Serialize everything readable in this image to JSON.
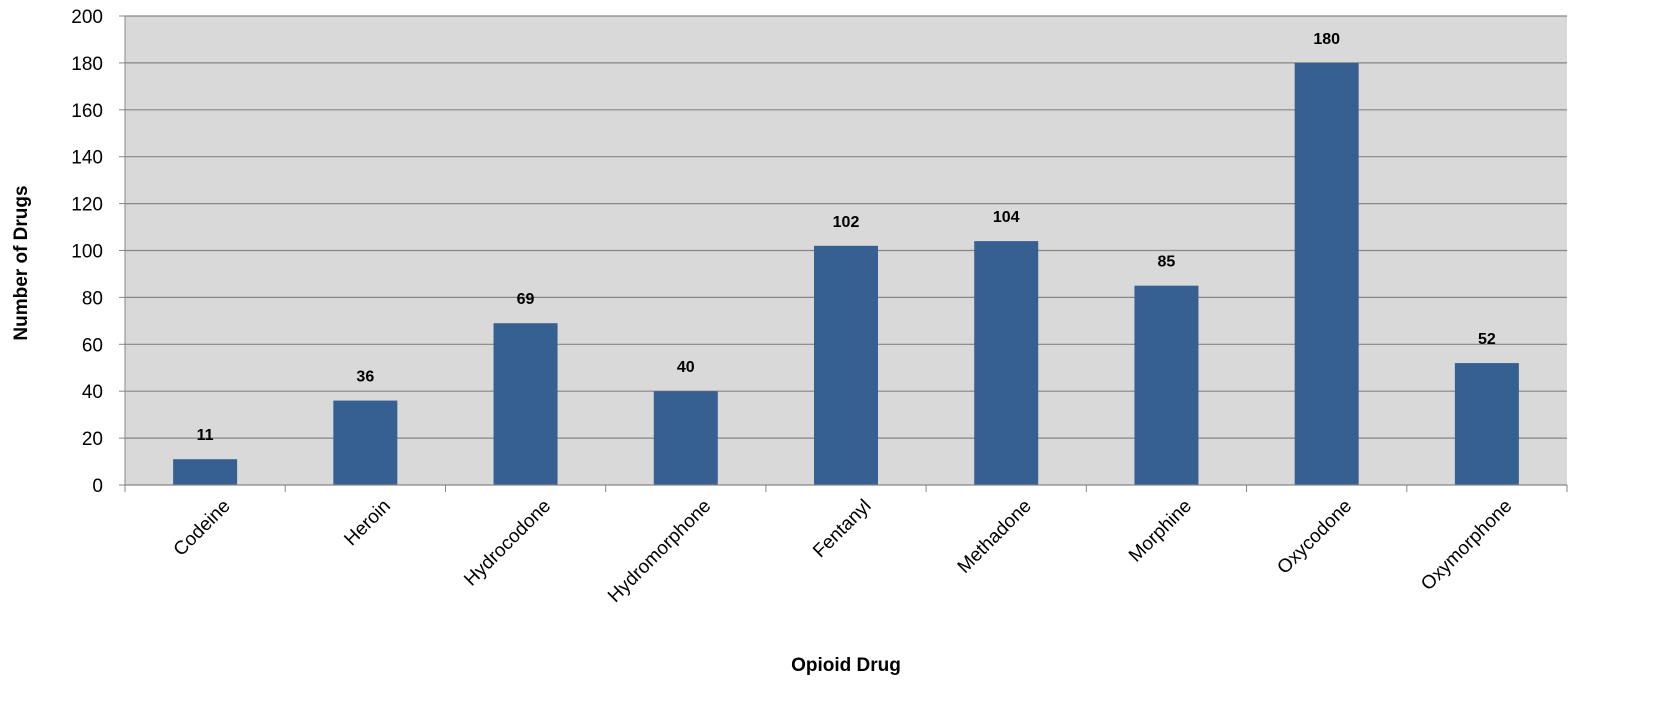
{
  "chart_data": {
    "type": "bar",
    "categories": [
      "Codeine",
      "Heroin",
      "Hydrocodone",
      "Hydromorphone",
      "Fentanyl",
      "Methadone",
      "Morphine",
      "Oxycodone",
      "Oxymorphone"
    ],
    "values": [
      11,
      36,
      69,
      40,
      102,
      104,
      85,
      180,
      52
    ],
    "xlabel": "Opioid Drug",
    "ylabel": "Number of Drugs",
    "ylim": [
      0,
      200
    ],
    "yticks": [
      0,
      20,
      40,
      60,
      80,
      100,
      120,
      140,
      160,
      180,
      200
    ],
    "grid": true,
    "legend": "none",
    "data_labels": true,
    "colors": {
      "bar": "#376092",
      "plot_background": "#d9d9d9",
      "gridline": "#868686"
    }
  }
}
